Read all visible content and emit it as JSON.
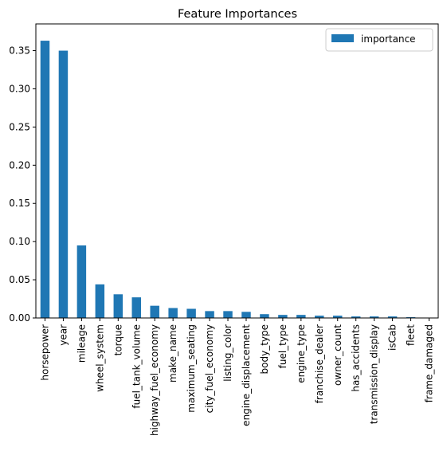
{
  "chart_data": {
    "type": "bar",
    "title": "Feature Importances",
    "xlabel": "",
    "ylabel": "",
    "ylim": [
      0,
      0.385
    ],
    "yticks": [
      "0.00",
      "0.05",
      "0.10",
      "0.15",
      "0.20",
      "0.25",
      "0.30",
      "0.35"
    ],
    "grid": false,
    "legend_position": "top-right",
    "categories": [
      "horsepower",
      "year",
      "mileage",
      "wheel_system",
      "torque",
      "fuel_tank_volume",
      "highway_fuel_economy",
      "make_name",
      "maximum_seating",
      "city_fuel_economy",
      "listing_color",
      "engine_displacement",
      "body_type",
      "fuel_type",
      "engine_type",
      "franchise_dealer",
      "owner_count",
      "has_accidents",
      "transmission_display",
      "isCab",
      "fleet",
      "frame_damaged"
    ],
    "series": [
      {
        "name": "importance",
        "color": "#1f77b4",
        "values": [
          0.363,
          0.35,
          0.095,
          0.044,
          0.031,
          0.027,
          0.016,
          0.013,
          0.012,
          0.009,
          0.009,
          0.008,
          0.005,
          0.004,
          0.004,
          0.003,
          0.003,
          0.002,
          0.002,
          0.002,
          0.001,
          0.0
        ]
      }
    ]
  }
}
